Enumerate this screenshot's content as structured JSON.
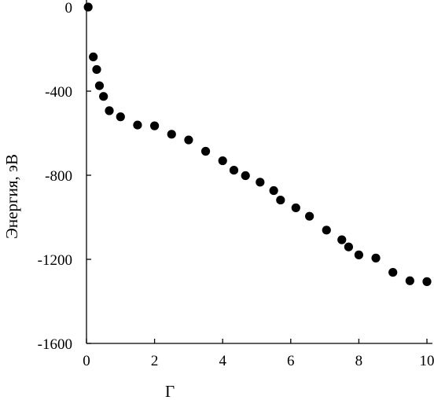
{
  "chart_data": {
    "type": "scatter",
    "title": "",
    "xlabel": "Г",
    "ylabel": "Энергия, эВ",
    "xlim": [
      0,
      10
    ],
    "ylim": [
      -1600,
      0
    ],
    "x_ticks": [
      {
        "value": 0,
        "label": "0"
      },
      {
        "value": 2,
        "label": "2"
      },
      {
        "value": 4,
        "label": "4"
      },
      {
        "value": 6,
        "label": "6"
      },
      {
        "value": 8,
        "label": "8"
      },
      {
        "value": 10,
        "label": "10"
      }
    ],
    "y_ticks": [
      {
        "value": 0,
        "label": "0"
      },
      {
        "value": -400,
        "label": "-400"
      },
      {
        "value": -800,
        "label": "-800"
      },
      {
        "value": -1200,
        "label": "-1200"
      },
      {
        "value": -1600,
        "label": "-1600"
      }
    ],
    "grid": false,
    "marker_color": "#000000",
    "series": [
      {
        "points": [
          {
            "x": 0.05,
            "y": 0
          },
          {
            "x": 0.2,
            "y": -237
          },
          {
            "x": 0.3,
            "y": -297
          },
          {
            "x": 0.38,
            "y": -374
          },
          {
            "x": 0.5,
            "y": -425
          },
          {
            "x": 0.67,
            "y": -493
          },
          {
            "x": 1.0,
            "y": -522
          },
          {
            "x": 1.5,
            "y": -561
          },
          {
            "x": 2.0,
            "y": -565
          },
          {
            "x": 2.5,
            "y": -605
          },
          {
            "x": 3.0,
            "y": -632
          },
          {
            "x": 3.5,
            "y": -686
          },
          {
            "x": 4.0,
            "y": -731
          },
          {
            "x": 4.33,
            "y": -776
          },
          {
            "x": 4.67,
            "y": -802
          },
          {
            "x": 5.1,
            "y": -833
          },
          {
            "x": 5.5,
            "y": -873
          },
          {
            "x": 5.7,
            "y": -918
          },
          {
            "x": 6.15,
            "y": -955
          },
          {
            "x": 6.55,
            "y": -995
          },
          {
            "x": 7.05,
            "y": -1061
          },
          {
            "x": 7.5,
            "y": -1107
          },
          {
            "x": 7.7,
            "y": -1141
          },
          {
            "x": 8.0,
            "y": -1179
          },
          {
            "x": 8.5,
            "y": -1194
          },
          {
            "x": 9.0,
            "y": -1262
          },
          {
            "x": 9.5,
            "y": -1302
          },
          {
            "x": 10.0,
            "y": -1306
          }
        ]
      }
    ]
  }
}
